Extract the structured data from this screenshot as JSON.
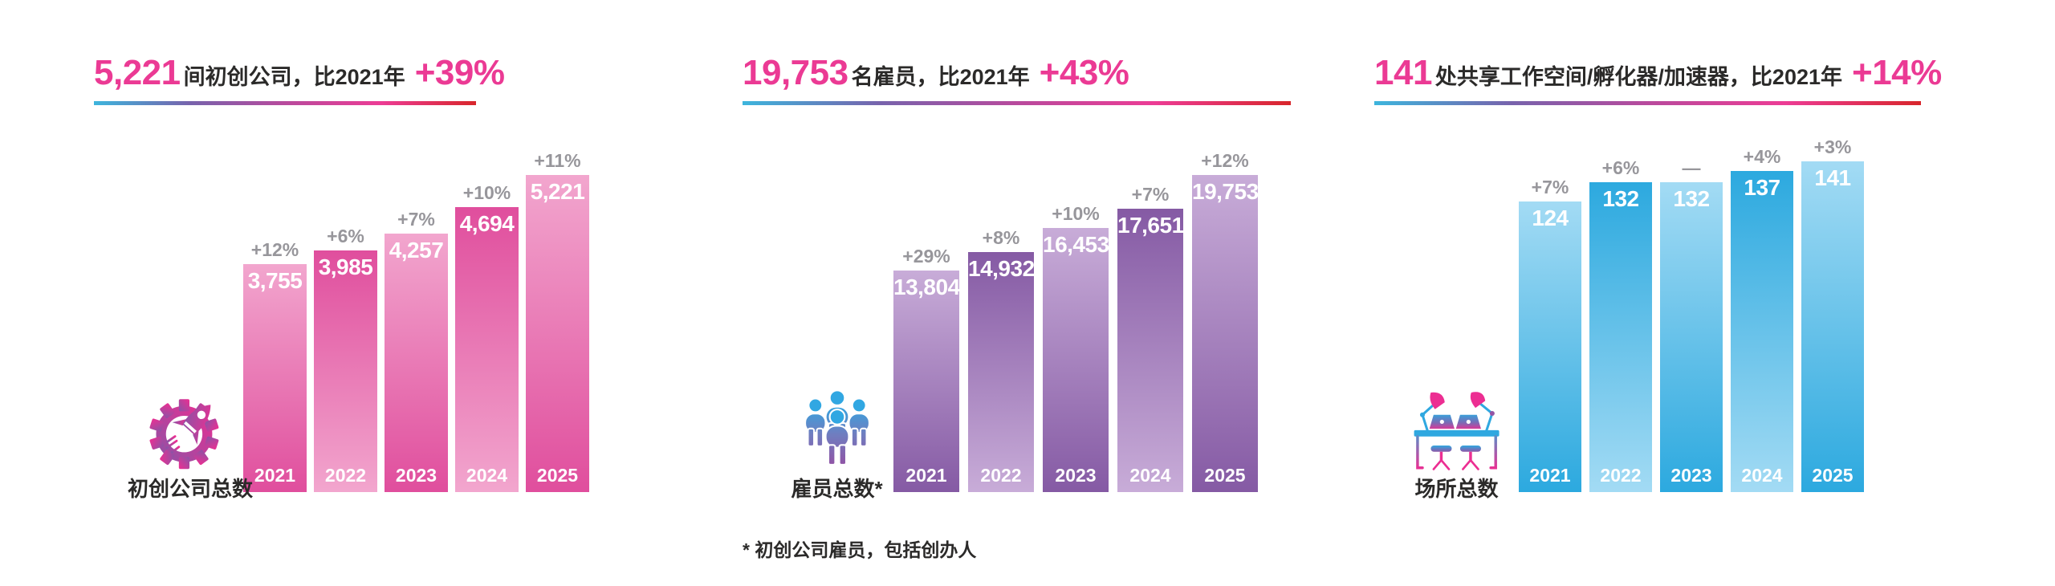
{
  "page": {
    "background": "#FFFFFF",
    "text_color": "#2B2A29",
    "accent_color": "#EB3A94",
    "pct_color": "#97969B",
    "underline_colors": [
      "#3DB5DD",
      "#7763AC",
      "#B84A9D",
      "#EC3C95",
      "#D8262B"
    ],
    "footnote": "* 初创公司雇员，包括创办人"
  },
  "chart_data": [
    {
      "type": "bar",
      "headline_value": "5,221",
      "headline_text": "间初创公司，比2021年",
      "headline_delta": "+39%",
      "icon": "rocket-gear-icon",
      "icon_caption": "初创公司总数",
      "categories": [
        "2021",
        "2022",
        "2023",
        "2024",
        "2025"
      ],
      "values": [
        3755,
        3985,
        4257,
        4694,
        5221
      ],
      "value_labels": [
        "3,755",
        "3,985",
        "4,257",
        "4,694",
        "5,221"
      ],
      "pct_labels": [
        "+12%",
        "+6%",
        "+7%",
        "+10%",
        "+11%"
      ],
      "ylim": [
        0,
        5221
      ],
      "grid": false,
      "legend": false,
      "colors": {
        "bar_light": "#F2A6CE",
        "bar_dark": "#E04E9D",
        "value_label": "#FFFFFF",
        "year_label": "#FFFFFF"
      }
    },
    {
      "type": "bar",
      "headline_value": "19,753",
      "headline_text": "名雇员，比2021年",
      "headline_delta": "+43%",
      "icon": "people-group-icon",
      "icon_caption": "雇员总数*",
      "categories": [
        "2021",
        "2022",
        "2023",
        "2024",
        "2025"
      ],
      "values": [
        13804,
        14932,
        16453,
        17651,
        19753
      ],
      "value_labels": [
        "13,804",
        "14,932",
        "16,453",
        "17,651",
        "19,753"
      ],
      "pct_labels": [
        "+29%",
        "+8%",
        "+10%",
        "+7%",
        "+12%"
      ],
      "ylim": [
        0,
        19753
      ],
      "grid": false,
      "legend": false,
      "colors": {
        "bar_light": "#C8ACD8",
        "bar_dark": "#855AA4",
        "value_label": "#FFFFFF",
        "year_label": "#FFFFFF"
      }
    },
    {
      "type": "bar",
      "headline_value": "141",
      "headline_text": "处共享工作空间/孵化器/加速器，比2021年",
      "headline_delta": "+14%",
      "icon": "desk-workspace-icon",
      "icon_caption": "场所总数",
      "categories": [
        "2021",
        "2022",
        "2023",
        "2024",
        "2025"
      ],
      "values": [
        124,
        132,
        132,
        137,
        141
      ],
      "value_labels": [
        "124",
        "132",
        "132",
        "137",
        "141"
      ],
      "pct_labels": [
        "+7%",
        "+6%",
        "—",
        "+4%",
        "+3%"
      ],
      "ylim": [
        0,
        141
      ],
      "grid": false,
      "legend": false,
      "colors": {
        "bar_light": "#A3DBF4",
        "bar_dark": "#2CA9DF",
        "value_label": "#FFFFFF",
        "year_label": "#FFFFFF"
      }
    }
  ]
}
